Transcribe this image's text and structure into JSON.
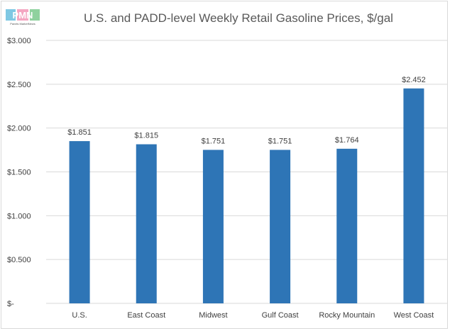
{
  "logo": {
    "text": "PMN",
    "caption": "Panels MarketNews"
  },
  "chart_data": {
    "type": "bar",
    "title": "U.S. and PADD-level Weekly Retail Gasoline Prices, $/gal",
    "xlabel": "",
    "ylabel": "",
    "categories": [
      "U.S.",
      "East Coast",
      "Midwest",
      "Gulf Coast",
      "Rocky Mountain",
      "West Coast"
    ],
    "values": [
      1.851,
      1.815,
      1.751,
      1.751,
      1.764,
      2.452
    ],
    "data_labels": [
      "$1.851",
      "$1.815",
      "$1.751",
      "$1.751",
      "$1.764",
      "$2.452"
    ],
    "y_ticks": [
      0,
      0.5,
      1.0,
      1.5,
      2.0,
      2.5,
      3.0
    ],
    "y_tick_labels": [
      "$-",
      "$0.500",
      "$1.000",
      "$1.500",
      "$2.000",
      "$2.500",
      "$3.000"
    ],
    "ylim": [
      0,
      3.0
    ],
    "grid": true,
    "legend": "none",
    "bar_color": "#2e75b6",
    "grid_color": "#d9d9d9",
    "text_color": "#404040"
  }
}
